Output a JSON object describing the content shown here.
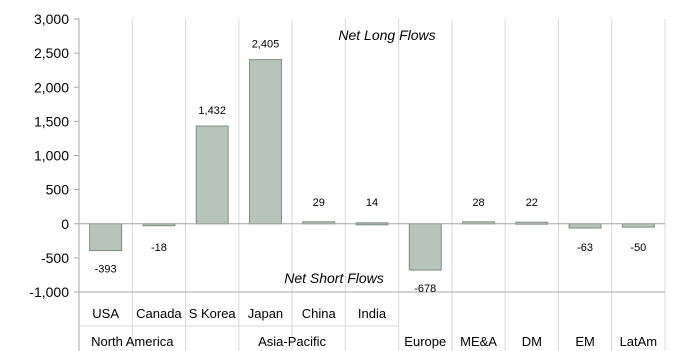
{
  "colors": {
    "bar_fill": "#b6c4bb",
    "bar_stroke": "#7d8c82",
    "grid": "#d9d9d9",
    "axis": "#a6a6a6"
  },
  "chart_data": {
    "type": "bar",
    "categories": [
      "USA",
      "Canada",
      "S Korea",
      "Japan",
      "China",
      "India",
      "Europe",
      "ME&A",
      "DM",
      "EM",
      "LatAm"
    ],
    "groups": [
      {
        "label": "North America",
        "categories": [
          "USA",
          "Canada"
        ]
      },
      {
        "label": "Asia-Pacific",
        "categories": [
          "S Korea",
          "Japan",
          "China",
          "India"
        ]
      },
      {
        "label": "Europe",
        "categories": [
          "Europe"
        ]
      },
      {
        "label": "ME&A",
        "categories": [
          "ME&A"
        ]
      },
      {
        "label": "DM",
        "categories": [
          "DM"
        ]
      },
      {
        "label": "EM",
        "categories": [
          "EM"
        ]
      },
      {
        "label": "LatAm",
        "categories": [
          "LatAm"
        ]
      }
    ],
    "values": [
      -393,
      -18,
      1432,
      2405,
      29,
      14,
      -678,
      28,
      22,
      -63,
      -50
    ],
    "data_labels": [
      "-393",
      "-18",
      "1,432",
      "2,405",
      "29",
      "14",
      "-678",
      "28",
      "22",
      "-63",
      "-50"
    ],
    "ylim": [
      -1000,
      3000
    ],
    "yticks": [
      -1000,
      -500,
      0,
      500,
      1000,
      1500,
      2000,
      2500,
      3000
    ],
    "ytick_labels": [
      "-1,000",
      "-500",
      "0",
      "500",
      "1,000",
      "1,500",
      "2,000",
      "2,500",
      "3,000"
    ],
    "annotations": [
      "Net Long Flows",
      "Net Short Flows"
    ],
    "grid": "vertical category separators",
    "legend": "none"
  }
}
